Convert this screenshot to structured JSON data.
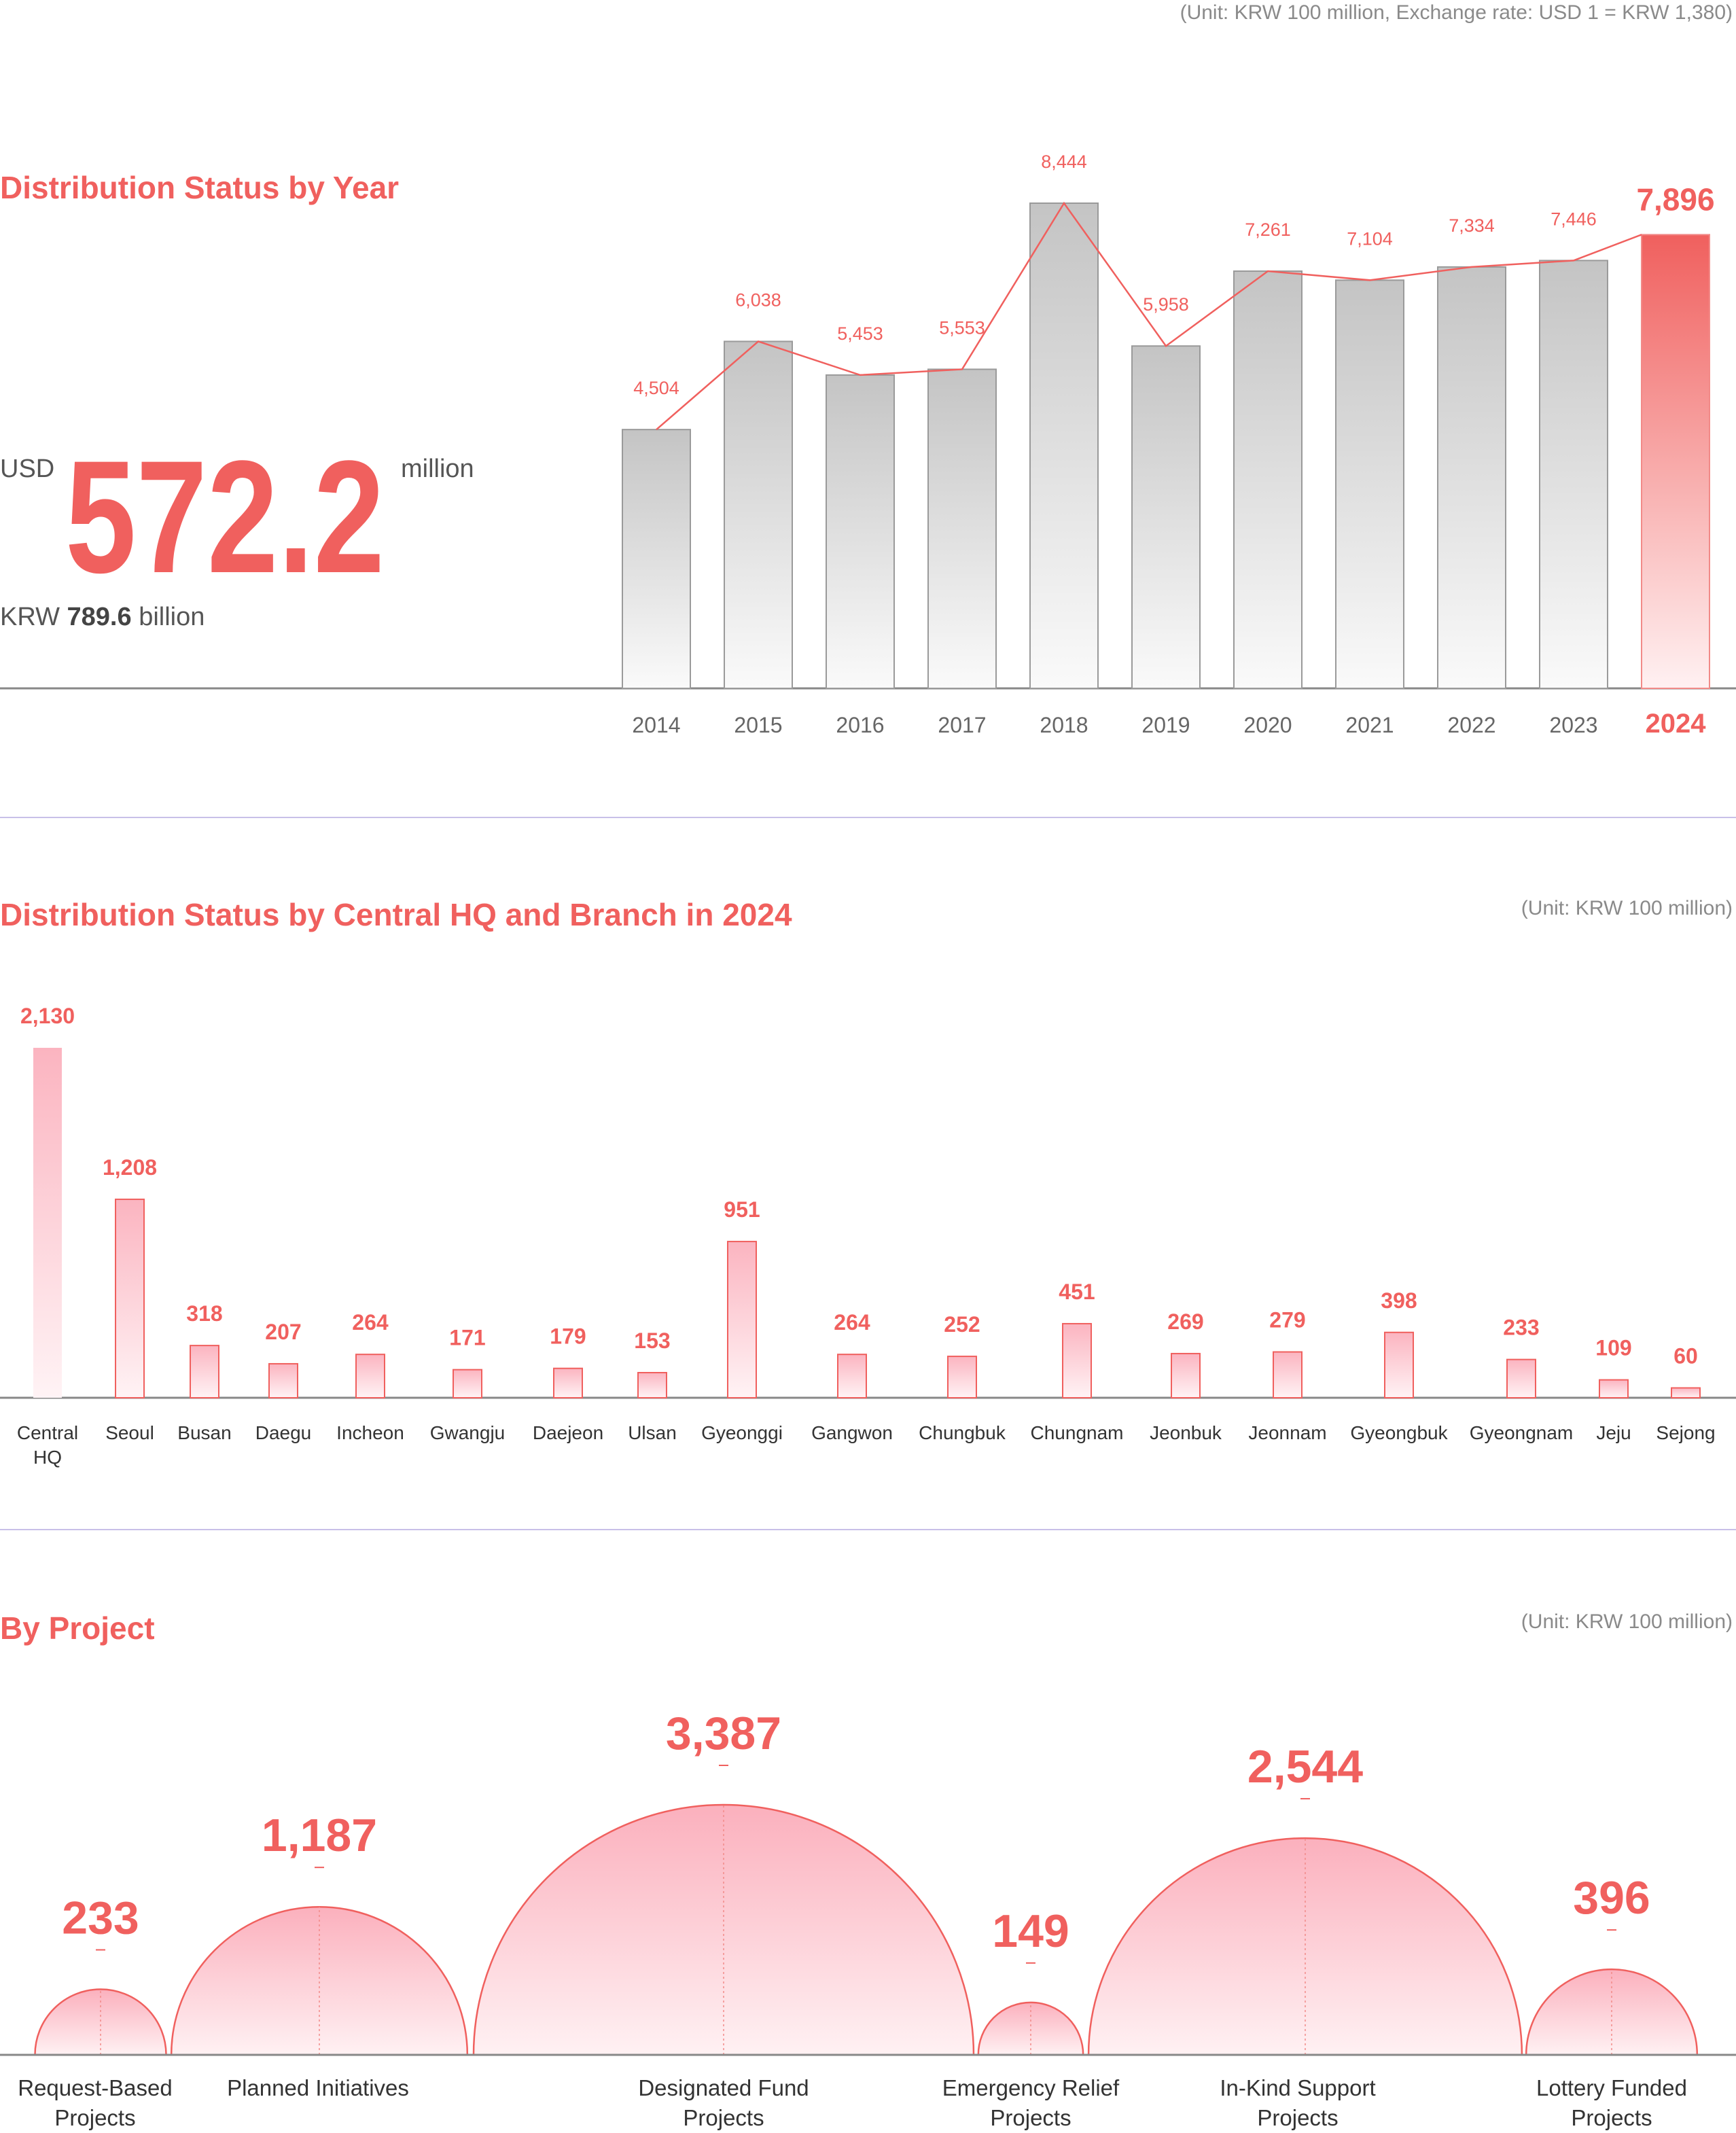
{
  "top_unit_note": "(Unit: KRW 100 million, Exchange rate: USD 1 = KRW 1,380)",
  "summary": {
    "usd_prefix": "USD",
    "usd_value": "572.2",
    "usd_suffix": "million",
    "krw_prefix": "KRW",
    "krw_value": "789.6",
    "krw_suffix": "billion"
  },
  "colors": {
    "accent": "#f0605e",
    "gray_bar": "#c9c9c9",
    "divider": "#c8c0e8",
    "axis": "#888888"
  },
  "chart_data": [
    {
      "type": "bar",
      "title": "Distribution Status by Year",
      "categories": [
        "2014",
        "2015",
        "2016",
        "2017",
        "2018",
        "2019",
        "2020",
        "2021",
        "2022",
        "2023",
        "2024"
      ],
      "values": [
        4504,
        6038,
        5453,
        5553,
        8444,
        5958,
        7261,
        7104,
        7334,
        7446,
        7896
      ],
      "labels": [
        "4,504",
        "6,038",
        "5,453",
        "5,553",
        "8,444",
        "5,958",
        "7,261",
        "7,104",
        "7,334",
        "7,446",
        "7,896"
      ],
      "highlight": "2024",
      "overlay_line": true
    },
    {
      "type": "bar",
      "title": "Distribution Status by Central HQ and Branch in 2024",
      "unit_note": "(Unit: KRW 100 million)",
      "categories": [
        "Central HQ",
        "Seoul",
        "Busan",
        "Daegu",
        "Incheon",
        "Gwangju",
        "Daejeon",
        "Ulsan",
        "Gyeonggi",
        "Gangwon",
        "Chungbuk",
        "Chungnam",
        "Jeonbuk",
        "Jeonnam",
        "Gyeongbuk",
        "Gyeongnam",
        "Jeju",
        "Sejong"
      ],
      "values": [
        2130,
        1208,
        318,
        207,
        264,
        171,
        179,
        153,
        951,
        264,
        252,
        451,
        269,
        279,
        398,
        233,
        109,
        60
      ],
      "labels": [
        "2,130",
        "1,208",
        "318",
        "207",
        "264",
        "171",
        "179",
        "153",
        "951",
        "264",
        "252",
        "451",
        "269",
        "279",
        "398",
        "233",
        "109",
        "60"
      ]
    },
    {
      "type": "bubble",
      "title": "By Project",
      "unit_note": "(Unit: KRW 100 million)",
      "categories": [
        "Request-Based Projects",
        "Planned Initiatives",
        "Designated Fund Projects",
        "Emergency Relief Projects",
        "In-Kind Support Projects",
        "Lottery Funded Projects"
      ],
      "values": [
        233,
        1187,
        3387,
        149,
        2544,
        396
      ],
      "labels": [
        "233",
        "1,187",
        "3,387",
        "149",
        "2,544",
        "396"
      ]
    }
  ]
}
